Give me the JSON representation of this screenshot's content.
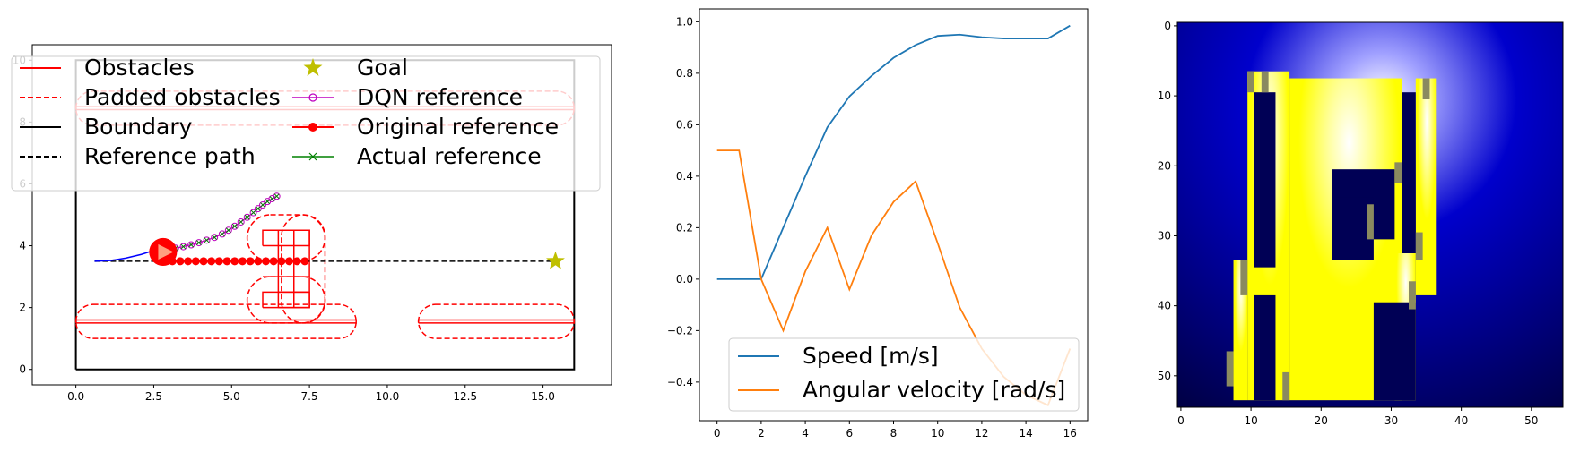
{
  "chart_data": [
    {
      "type": "line",
      "panel": "map",
      "xlim": [
        -1.4,
        17.2
      ],
      "ylim": [
        -0.5,
        10.5
      ],
      "xticks": [
        "0.0",
        "2.5",
        "5.0",
        "7.5",
        "10.0",
        "12.5",
        "15.0"
      ],
      "yticks": [
        "0",
        "2",
        "4",
        "6",
        "8",
        "10"
      ],
      "grid": false,
      "legend_position": "top",
      "legend": [
        {
          "label": "Obstacles",
          "color": "#ff0000",
          "style": "solid"
        },
        {
          "label": "Padded obstacles",
          "color": "#ff0000",
          "style": "dashed"
        },
        {
          "label": "Boundary",
          "color": "#000000",
          "style": "solid"
        },
        {
          "label": "Reference path",
          "color": "#000000",
          "style": "dashed"
        },
        {
          "label": "Goal",
          "color": "#bfbf00",
          "style": "star"
        },
        {
          "label": "DQN reference",
          "color": "#bf00bf",
          "style": "open-circle"
        },
        {
          "label": "Original reference",
          "color": "#ff0000",
          "style": "filled-circle"
        },
        {
          "label": "Actual reference",
          "color": "#008000",
          "style": "x"
        }
      ],
      "boundary": {
        "x": [
          0,
          16,
          16,
          0,
          0
        ],
        "y": [
          0,
          0,
          10,
          10,
          0
        ]
      },
      "reference_path": {
        "x": [
          0.6,
          15.4
        ],
        "y": [
          3.5,
          3.5
        ]
      },
      "goal": {
        "x": 15.4,
        "y": 3.5
      },
      "robot": {
        "x": 2.8,
        "y": 3.8,
        "radius": 0.45
      },
      "trajectory": {
        "x": [
          0.6,
          1.1,
          1.6,
          2.1,
          2.5,
          2.8
        ],
        "y": [
          3.5,
          3.52,
          3.6,
          3.72,
          3.85,
          3.85
        ]
      },
      "obstacles": [
        {
          "x": [
            0.0,
            9.0,
            9.0,
            0.0,
            0.0
          ],
          "y": [
            1.5,
            1.5,
            1.6,
            1.6,
            1.5
          ]
        },
        {
          "x": [
            11.0,
            16.0,
            16.0,
            11.0,
            11.0
          ],
          "y": [
            1.5,
            1.5,
            1.6,
            1.6,
            1.5
          ]
        },
        {
          "x": [
            0.0,
            16.0,
            16.0,
            0.0,
            0.0
          ],
          "y": [
            8.4,
            8.4,
            8.5,
            8.5,
            8.4
          ]
        },
        {
          "x": [
            6.0,
            7.5,
            7.5,
            6.0,
            6.0
          ],
          "y": [
            4.0,
            4.0,
            4.5,
            4.5,
            4.0
          ]
        },
        {
          "x": [
            6.5,
            7.5,
            7.5,
            6.5,
            6.5
          ],
          "y": [
            2.0,
            2.0,
            4.5,
            4.5,
            2.0
          ]
        },
        {
          "x": [
            6.0,
            7.5,
            7.5,
            6.0,
            6.0
          ],
          "y": [
            2.0,
            2.0,
            2.5,
            2.5,
            2.0
          ]
        }
      ],
      "padded_obstacles": [
        {
          "x": [
            0.0,
            9.0
          ],
          "y": [
            1.0,
            2.1
          ]
        },
        {
          "x": [
            11.0,
            16.0
          ],
          "y": [
            1.0,
            2.1
          ]
        },
        {
          "x": [
            0.0,
            16.0
          ],
          "y": [
            7.9,
            9.0
          ]
        },
        {
          "x": [
            5.5,
            8.0
          ],
          "y": [
            3.5,
            5.0
          ]
        },
        {
          "x": [
            5.5,
            8.0
          ],
          "y": [
            1.5,
            3.0
          ]
        },
        {
          "x": [
            6.6,
            8.0
          ],
          "y": [
            1.5,
            5.0
          ]
        }
      ],
      "original_reference": {
        "x": [
          2.8,
          3.1,
          3.35,
          3.6,
          3.85,
          4.1,
          4.35,
          4.6,
          4.85,
          5.1,
          5.35,
          5.6,
          5.85,
          6.1,
          6.35,
          6.6,
          6.85,
          7.1,
          7.35
        ],
        "y": [
          3.5,
          3.5,
          3.5,
          3.5,
          3.5,
          3.5,
          3.5,
          3.5,
          3.5,
          3.5,
          3.5,
          3.5,
          3.5,
          3.5,
          3.5,
          3.5,
          3.5,
          3.5,
          3.5
        ]
      },
      "dqn_reference": {
        "x": [
          3.2,
          3.45,
          3.7,
          3.95,
          4.2,
          4.45,
          4.7,
          4.9,
          5.1,
          5.3,
          5.5,
          5.7,
          5.85,
          6.0,
          6.15,
          6.3,
          6.45
        ],
        "y": [
          3.92,
          3.97,
          4.03,
          4.1,
          4.18,
          4.27,
          4.38,
          4.5,
          4.63,
          4.77,
          4.92,
          5.07,
          5.2,
          5.32,
          5.43,
          5.52,
          5.6
        ]
      }
    },
    {
      "type": "line",
      "panel": "velocities",
      "xlim": [
        -0.8,
        16.8
      ],
      "ylim": [
        -0.55,
        1.05
      ],
      "xticks": [
        "0",
        "2",
        "4",
        "6",
        "8",
        "10",
        "12",
        "14",
        "16"
      ],
      "yticks": [
        "−0.4",
        "−0.2",
        "0.0",
        "0.2",
        "0.4",
        "0.6",
        "0.8",
        "1.0"
      ],
      "grid": false,
      "legend_position": "lower right",
      "x": [
        0,
        1,
        2,
        3,
        4,
        5,
        6,
        7,
        8,
        9,
        10,
        11,
        12,
        13,
        14,
        15,
        16
      ],
      "series": [
        {
          "name": "Speed [m/s]",
          "color": "#1f77b4",
          "values": [
            0.0,
            0.0,
            0.0,
            0.2,
            0.4,
            0.59,
            0.71,
            0.79,
            0.86,
            0.91,
            0.945,
            0.95,
            0.94,
            0.935,
            0.935,
            0.935,
            0.985
          ]
        },
        {
          "name": "Angular velocity [rad/s]",
          "color": "#ff7f0e",
          "values": [
            0.5,
            0.5,
            0.0,
            -0.2,
            0.03,
            0.2,
            -0.04,
            0.17,
            0.3,
            0.38,
            0.14,
            -0.11,
            -0.27,
            -0.38,
            -0.45,
            -0.49,
            -0.27
          ]
        }
      ]
    },
    {
      "type": "heatmap",
      "panel": "occupancy-image",
      "xlim": [
        -0.5,
        54.5
      ],
      "ylim": [
        54.5,
        -0.5
      ],
      "xticks": [
        "0",
        "10",
        "20",
        "30",
        "40",
        "50"
      ],
      "yticks": [
        "0",
        "10",
        "20",
        "30",
        "40",
        "50"
      ],
      "grid": false,
      "colors": {
        "background_center": "#ffffff",
        "background_mid": "#0000cc",
        "background_edge": "#00003a",
        "obstacle": "#ffff00",
        "free_space": "#000055"
      }
    }
  ]
}
